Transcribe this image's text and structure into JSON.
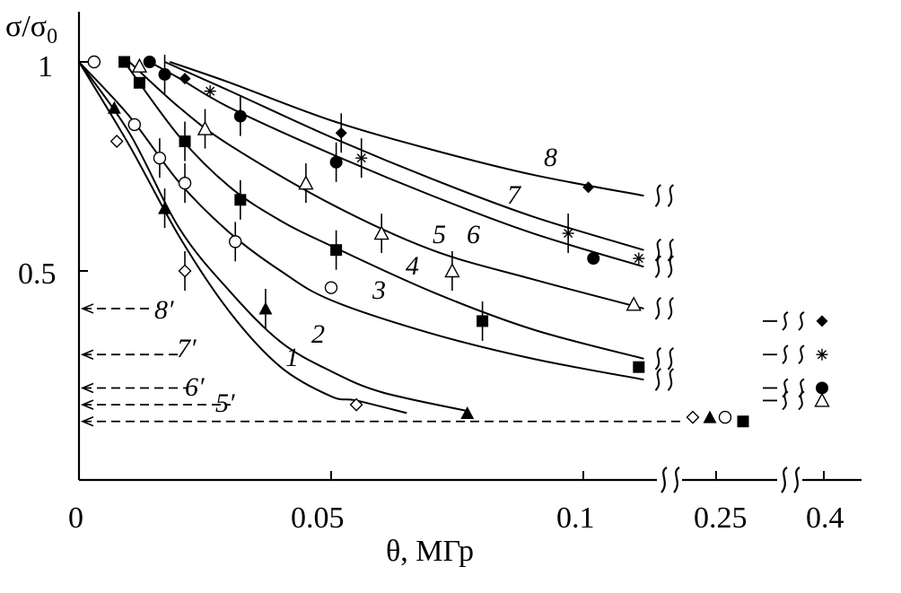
{
  "chart_data": {
    "type": "line",
    "ylabel": "σ/σ0",
    "ylabel_main": "σ/σ",
    "ylabel_sub": "0",
    "xlabel": "θ, МГр",
    "y_ticks": [
      "1",
      "0.5"
    ],
    "x_ticks": [
      "0",
      "0.05",
      "0.1",
      "0.25",
      "0.4"
    ],
    "ylim": [
      0,
      1.15
    ],
    "x_axis": "broken: linear 0–0.115 MGy, then break at 0.25 and break at 0.4",
    "curve_labels": [
      "1",
      "2",
      "3",
      "4",
      "5",
      "6",
      "7",
      "8"
    ],
    "limit_labels": [
      "8′",
      "7′",
      "6′",
      "5′"
    ],
    "series": [
      {
        "name": "1",
        "marker": "open-diamond",
        "curve": [
          [
            0,
            1
          ],
          [
            0.01,
            0.8
          ],
          [
            0.02,
            0.58
          ],
          [
            0.03,
            0.4
          ],
          [
            0.04,
            0.27
          ],
          [
            0.05,
            0.2
          ],
          [
            0.055,
            0.19
          ],
          [
            0.065,
            0.16
          ]
        ],
        "points": [
          [
            0.0075,
            0.81
          ],
          [
            0.021,
            0.5
          ],
          [
            0.055,
            0.18
          ]
        ]
      },
      {
        "name": "2",
        "marker": "filled-triangle",
        "curve": [
          [
            0,
            1
          ],
          [
            0.01,
            0.83
          ],
          [
            0.02,
            0.6
          ],
          [
            0.03,
            0.45
          ],
          [
            0.04,
            0.33
          ],
          [
            0.05,
            0.26
          ],
          [
            0.06,
            0.21
          ],
          [
            0.077,
            0.165
          ]
        ],
        "points": [
          [
            0.007,
            0.89
          ],
          [
            0.017,
            0.65
          ],
          [
            0.037,
            0.41
          ],
          [
            0.077,
            0.16
          ]
        ]
      },
      {
        "name": "3",
        "marker": "open-circle",
        "curve": [
          [
            0,
            1
          ],
          [
            0.01,
            0.87
          ],
          [
            0.02,
            0.71
          ],
          [
            0.03,
            0.59
          ],
          [
            0.04,
            0.5
          ],
          [
            0.05,
            0.43
          ],
          [
            0.07,
            0.35
          ],
          [
            0.09,
            0.29
          ],
          [
            0.112,
            0.24
          ]
        ],
        "points": [
          [
            0.003,
            1.0
          ],
          [
            0.011,
            0.85
          ],
          [
            0.016,
            0.77
          ],
          [
            0.021,
            0.71
          ],
          [
            0.031,
            0.57
          ],
          [
            0.05,
            0.46
          ]
        ]
      },
      {
        "name": "4",
        "marker": "filled-square",
        "curve": [
          [
            0.009,
            1
          ],
          [
            0.02,
            0.82
          ],
          [
            0.03,
            0.7
          ],
          [
            0.04,
            0.62
          ],
          [
            0.05,
            0.56
          ],
          [
            0.07,
            0.45
          ],
          [
            0.09,
            0.36
          ],
          [
            0.112,
            0.29
          ]
        ],
        "points": [
          [
            0.009,
            1.0
          ],
          [
            0.012,
            0.95
          ],
          [
            0.021,
            0.81
          ],
          [
            0.032,
            0.67
          ],
          [
            0.051,
            0.55
          ],
          [
            0.08,
            0.38
          ],
          [
            0.111,
            0.27
          ]
        ]
      },
      {
        "name": "5",
        "marker": "open-triangle",
        "curve": [
          [
            0.01,
            1
          ],
          [
            0.02,
            0.89
          ],
          [
            0.03,
            0.8
          ],
          [
            0.05,
            0.66
          ],
          [
            0.07,
            0.55
          ],
          [
            0.09,
            0.48
          ],
          [
            0.112,
            0.41
          ]
        ],
        "points": [
          [
            0.012,
            0.99
          ],
          [
            0.025,
            0.84
          ],
          [
            0.045,
            0.71
          ],
          [
            0.06,
            0.59
          ],
          [
            0.074,
            0.5
          ],
          [
            0.11,
            0.42
          ]
        ]
      },
      {
        "name": "6",
        "marker": "filled-circle",
        "curve": [
          [
            0.014,
            1
          ],
          [
            0.02,
            0.96
          ],
          [
            0.03,
            0.89
          ],
          [
            0.05,
            0.78
          ],
          [
            0.07,
            0.68
          ],
          [
            0.09,
            0.59
          ],
          [
            0.112,
            0.51
          ]
        ],
        "points": [
          [
            0.014,
            1.0
          ],
          [
            0.017,
            0.97
          ],
          [
            0.032,
            0.87
          ],
          [
            0.051,
            0.76
          ],
          [
            0.102,
            0.53
          ]
        ]
      },
      {
        "name": "7",
        "marker": "asterisk",
        "curve": [
          [
            0.017,
            1
          ],
          [
            0.03,
            0.93
          ],
          [
            0.05,
            0.82
          ],
          [
            0.07,
            0.72
          ],
          [
            0.09,
            0.63
          ],
          [
            0.112,
            0.55
          ]
        ],
        "points": [
          [
            0.026,
            0.93
          ],
          [
            0.056,
            0.77
          ],
          [
            0.097,
            0.59
          ],
          [
            0.111,
            0.53
          ]
        ]
      },
      {
        "name": "8",
        "marker": "filled-diamond",
        "curve": [
          [
            0.018,
            1
          ],
          [
            0.03,
            0.95
          ],
          [
            0.05,
            0.86
          ],
          [
            0.07,
            0.79
          ],
          [
            0.09,
            0.73
          ],
          [
            0.112,
            0.68
          ]
        ],
        "points": [
          [
            0.021,
            0.96
          ],
          [
            0.052,
            0.83
          ],
          [
            0.101,
            0.7
          ]
        ]
      }
    ],
    "limits_at_0_25": [
      {
        "marker": "open-diamond",
        "y": 0.15
      },
      {
        "marker": "filled-triangle",
        "y": 0.15
      },
      {
        "marker": "open-circle",
        "y": 0.15
      },
      {
        "marker": "filled-square",
        "y": 0.14
      }
    ],
    "limits_at_0_4": [
      {
        "marker": "filled-diamond",
        "y": 0.38
      },
      {
        "marker": "asterisk",
        "y": 0.3
      },
      {
        "marker": "filled-circle",
        "y": 0.22
      },
      {
        "marker": "open-triangle",
        "y": 0.19
      }
    ],
    "dashed_limits": [
      {
        "label": "8′",
        "y": 0.41
      },
      {
        "label": "7′",
        "y": 0.3
      },
      {
        "label": "6′",
        "y": 0.22
      },
      {
        "label": "5′",
        "y": 0.18
      }
    ],
    "grid": false,
    "legend": "none"
  }
}
